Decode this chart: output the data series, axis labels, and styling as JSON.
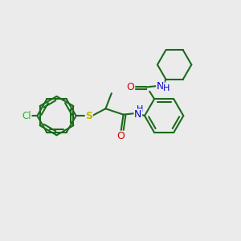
{
  "background_color": "#ebebeb",
  "bond_color": "#1a6b1a",
  "cl_color": "#22bb22",
  "s_color": "#bbbb00",
  "o_color": "#cc0000",
  "n_color": "#0000cc",
  "line_width": 1.5,
  "figsize": [
    3.0,
    3.0
  ],
  "dpi": 100,
  "xlim": [
    0,
    10
  ],
  "ylim": [
    0,
    10
  ]
}
